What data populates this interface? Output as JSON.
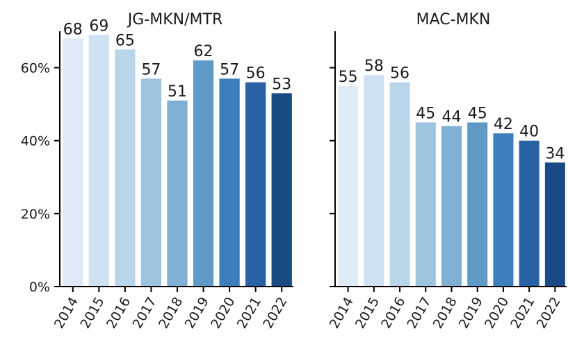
{
  "colors": [
    "#deebf7",
    "#cfe1f2",
    "#b9d5ea",
    "#9dc4de",
    "#7fb0d3",
    "#5f9ac6",
    "#3d7ebc",
    "#2862a5",
    "#1a4a84"
  ],
  "chart_data": [
    {
      "type": "bar",
      "title": "JG-MKN/MTR",
      "categories": [
        "2014",
        "2015",
        "2016",
        "2017",
        "2018",
        "2019",
        "2020",
        "2021",
        "2022"
      ],
      "values": [
        68,
        69,
        65,
        57,
        51,
        62,
        57,
        56,
        53
      ],
      "ylim": [
        0,
        70
      ],
      "yticks": [
        0,
        20,
        40,
        60
      ],
      "ytick_labels": [
        "0%",
        "20%",
        "40%",
        "60%"
      ],
      "show_yticklabels": true,
      "grid": false
    },
    {
      "type": "bar",
      "title": "MAC-MKN",
      "categories": [
        "2014",
        "2015",
        "2016",
        "2017",
        "2018",
        "2019",
        "2020",
        "2021",
        "2022"
      ],
      "values": [
        55,
        58,
        56,
        45,
        44,
        45,
        42,
        40,
        34
      ],
      "ylim": [
        0,
        70
      ],
      "yticks": [
        0,
        20,
        40,
        60
      ],
      "ytick_labels": [
        "0%",
        "20%",
        "40%",
        "60%"
      ],
      "show_yticklabels": false,
      "grid": false
    }
  ]
}
